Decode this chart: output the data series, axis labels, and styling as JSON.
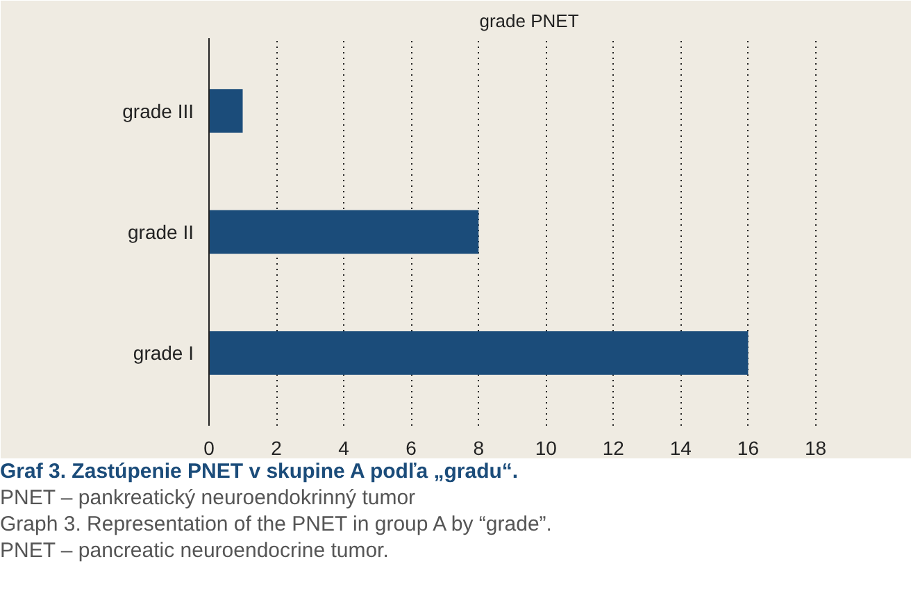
{
  "chart_data": {
    "type": "bar",
    "orientation": "horizontal",
    "title": "grade PNET",
    "categories": [
      "grade III",
      "grade II",
      "grade I"
    ],
    "values": [
      1,
      8,
      16
    ],
    "color": "#1b4c7a",
    "xlim": [
      0,
      19
    ],
    "xticks": [
      0,
      2,
      4,
      6,
      8,
      10,
      12,
      14,
      16,
      18
    ],
    "grid": "x",
    "annotations": [
      "Graf 3. Zastúpenie PNET v skupine A podľa „gradu“.",
      "PNET – pankreatický neuroendokrinný tumor",
      "Graph 3. Representation of the PNET in group A by “grade”.",
      "PNET – pancreatic neuroendocrine tumor."
    ]
  }
}
